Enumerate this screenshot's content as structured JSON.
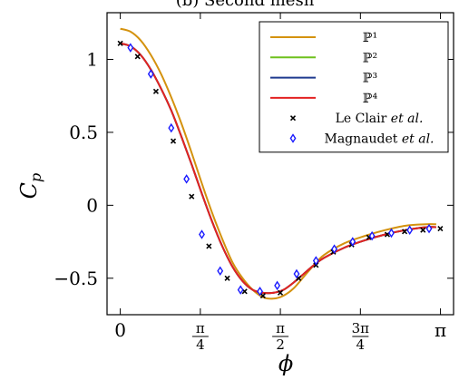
{
  "chart_data": {
    "type": "line",
    "title": "(b) Second mesh",
    "xlabel": "ϕ",
    "ylabel": "C",
    "ylabel_sub": "p",
    "xlim": [
      -0.13,
      3.27
    ],
    "ylim": [
      -0.75,
      1.32
    ],
    "x_ticks": [
      {
        "value": 0,
        "label": "0"
      },
      {
        "value": 0.785398,
        "label_num": "π",
        "label_den": "4"
      },
      {
        "value": 1.570796,
        "label_num": "π",
        "label_den": "2"
      },
      {
        "value": 2.356194,
        "label_num": "3π",
        "label_den": "4"
      },
      {
        "value": 3.141593,
        "label": "π"
      }
    ],
    "y_ticks": [
      {
        "value": 1,
        "label": "1"
      },
      {
        "value": 0.5,
        "label": "0.5"
      },
      {
        "value": 0,
        "label": "0"
      },
      {
        "value": -0.5,
        "label": "−0.5"
      }
    ],
    "legend_position": "top-right",
    "series": [
      {
        "name": "ℙ¹",
        "color": "#d4920e",
        "style": "line",
        "x": [
          0,
          0.1,
          0.2,
          0.3,
          0.4,
          0.5,
          0.6,
          0.7,
          0.8,
          0.9,
          1.0,
          1.1,
          1.2,
          1.3,
          1.4,
          1.5,
          1.6,
          1.7,
          1.8,
          1.9,
          2.0,
          2.2,
          2.4,
          2.6,
          2.8,
          3.0,
          3.1
        ],
        "y": [
          1.21,
          1.19,
          1.13,
          1.03,
          0.9,
          0.74,
          0.56,
          0.36,
          0.15,
          -0.05,
          -0.23,
          -0.39,
          -0.5,
          -0.58,
          -0.63,
          -0.64,
          -0.62,
          -0.57,
          -0.49,
          -0.41,
          -0.34,
          -0.26,
          -0.21,
          -0.17,
          -0.14,
          -0.13,
          -0.13
        ]
      },
      {
        "name": "ℙ²",
        "color": "#6fc11d",
        "style": "line",
        "x": [
          0,
          0.1,
          0.2,
          0.3,
          0.4,
          0.5,
          0.6,
          0.7,
          0.8,
          0.9,
          1.0,
          1.1,
          1.2,
          1.3,
          1.4,
          1.5,
          1.6,
          1.7,
          1.8,
          1.9,
          2.0,
          2.2,
          2.4,
          2.6,
          2.8,
          3.0,
          3.1
        ],
        "y": [
          1.11,
          1.09,
          1.03,
          0.93,
          0.8,
          0.65,
          0.47,
          0.28,
          0.08,
          -0.11,
          -0.28,
          -0.42,
          -0.52,
          -0.58,
          -0.6,
          -0.6,
          -0.58,
          -0.53,
          -0.47,
          -0.41,
          -0.36,
          -0.29,
          -0.24,
          -0.2,
          -0.17,
          -0.15,
          -0.15
        ]
      },
      {
        "name": "ℙ³",
        "color": "#1f3a8f",
        "style": "line",
        "x": [
          0,
          0.1,
          0.2,
          0.3,
          0.4,
          0.5,
          0.6,
          0.7,
          0.8,
          0.9,
          1.0,
          1.1,
          1.2,
          1.3,
          1.4,
          1.5,
          1.6,
          1.7,
          1.8,
          1.9,
          2.0,
          2.2,
          2.4,
          2.6,
          2.8,
          3.0,
          3.1
        ],
        "y": [
          1.11,
          1.09,
          1.03,
          0.93,
          0.8,
          0.65,
          0.47,
          0.28,
          0.08,
          -0.11,
          -0.28,
          -0.42,
          -0.52,
          -0.58,
          -0.6,
          -0.6,
          -0.58,
          -0.53,
          -0.47,
          -0.41,
          -0.36,
          -0.29,
          -0.24,
          -0.2,
          -0.17,
          -0.15,
          -0.15
        ]
      },
      {
        "name": "ℙ⁴",
        "color": "#e32222",
        "style": "line",
        "x": [
          0,
          0.1,
          0.2,
          0.3,
          0.4,
          0.5,
          0.6,
          0.7,
          0.8,
          0.9,
          1.0,
          1.1,
          1.2,
          1.3,
          1.4,
          1.5,
          1.6,
          1.7,
          1.8,
          1.9,
          2.0,
          2.2,
          2.4,
          2.6,
          2.8,
          3.0,
          3.1
        ],
        "y": [
          1.11,
          1.09,
          1.03,
          0.93,
          0.8,
          0.65,
          0.47,
          0.28,
          0.08,
          -0.11,
          -0.28,
          -0.42,
          -0.52,
          -0.58,
          -0.6,
          -0.6,
          -0.58,
          -0.53,
          -0.47,
          -0.41,
          -0.36,
          -0.29,
          -0.24,
          -0.2,
          -0.17,
          -0.15,
          -0.15
        ]
      },
      {
        "name_plain": "Le Clair ",
        "name_italic": "et al.",
        "color": "#000000",
        "style": "cross",
        "x": [
          0,
          0.17,
          0.35,
          0.52,
          0.7,
          0.87,
          1.05,
          1.22,
          1.4,
          1.57,
          1.75,
          1.92,
          2.09,
          2.27,
          2.44,
          2.62,
          2.79,
          2.97,
          3.14
        ],
        "y": [
          1.11,
          1.02,
          0.78,
          0.44,
          0.06,
          -0.28,
          -0.5,
          -0.59,
          -0.62,
          -0.6,
          -0.5,
          -0.41,
          -0.32,
          -0.27,
          -0.22,
          -0.2,
          -0.18,
          -0.17,
          -0.16
        ]
      },
      {
        "name_plain": "Magnaudet ",
        "name_italic": "et al.",
        "color": "#1a1aff",
        "style": "diamond",
        "x": [
          0.1,
          0.3,
          0.5,
          0.65,
          0.8,
          0.98,
          1.18,
          1.37,
          1.54,
          1.73,
          1.92,
          2.1,
          2.28,
          2.47,
          2.66,
          2.84,
          3.03
        ],
        "y": [
          1.08,
          0.9,
          0.53,
          0.18,
          -0.2,
          -0.45,
          -0.58,
          -0.59,
          -0.55,
          -0.47,
          -0.38,
          -0.3,
          -0.25,
          -0.21,
          -0.19,
          -0.17,
          -0.16
        ]
      }
    ]
  }
}
